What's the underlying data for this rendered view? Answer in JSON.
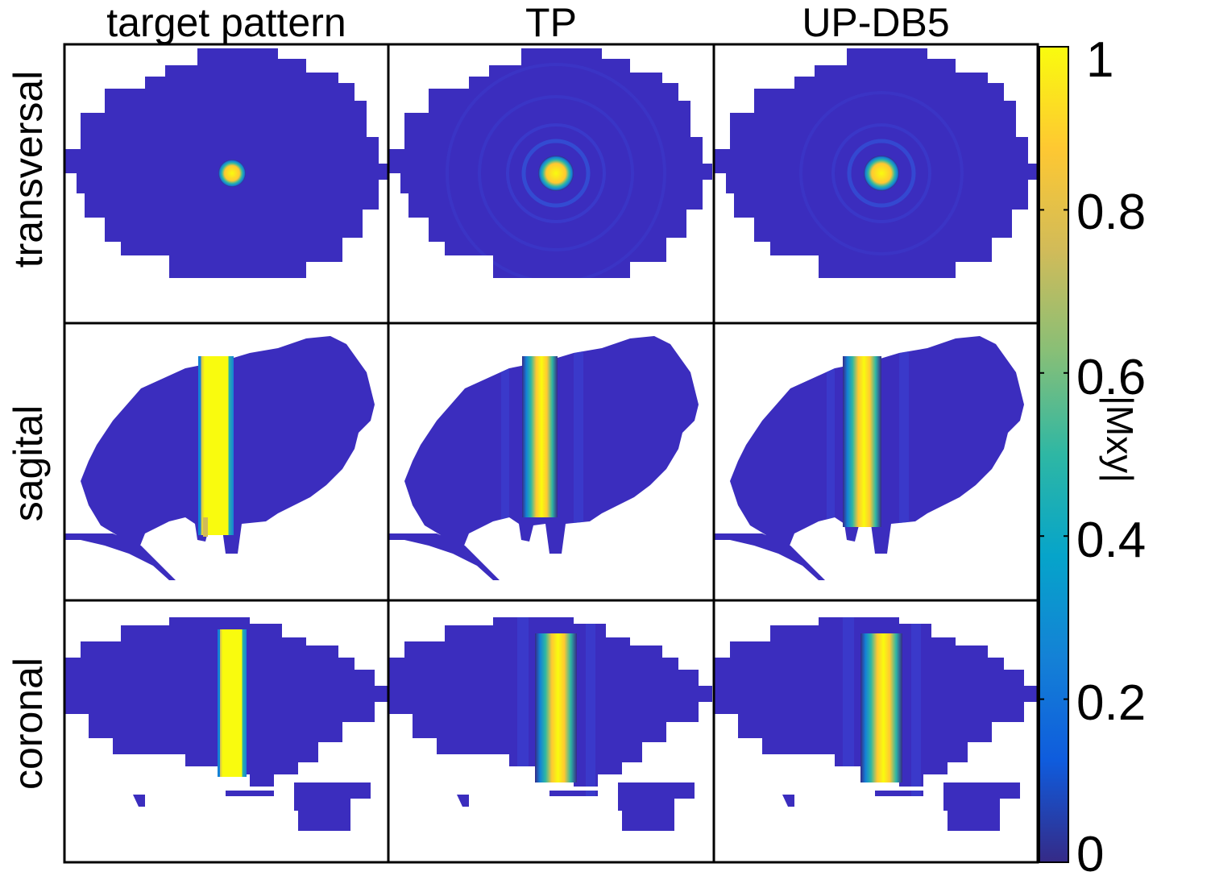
{
  "figure": {
    "column_titles": [
      "target pattern",
      "TP",
      "UP-DB5"
    ],
    "row_titles": [
      "transversal",
      "sagital",
      "coronal"
    ],
    "panels": [
      {
        "row": "transversal",
        "column": "target pattern",
        "pattern": "spot",
        "peak": 1.0,
        "ripple": 0.0
      },
      {
        "row": "transversal",
        "column": "TP",
        "pattern": "spot",
        "peak": 1.0,
        "ripple": 0.12
      },
      {
        "row": "transversal",
        "column": "UP-DB5",
        "pattern": "spot",
        "peak": 0.95,
        "ripple": 0.1
      },
      {
        "row": "sagital",
        "column": "target pattern",
        "pattern": "band",
        "peak": 1.0,
        "ripple": 0.0
      },
      {
        "row": "sagital",
        "column": "TP",
        "pattern": "band",
        "peak": 0.95,
        "ripple": 0.1
      },
      {
        "row": "sagital",
        "column": "UP-DB5",
        "pattern": "band",
        "peak": 0.93,
        "ripple": 0.1
      },
      {
        "row": "coronal",
        "column": "target pattern",
        "pattern": "band",
        "peak": 1.0,
        "ripple": 0.0
      },
      {
        "row": "coronal",
        "column": "TP",
        "pattern": "band",
        "peak": 0.95,
        "ripple": 0.1
      },
      {
        "row": "coronal",
        "column": "UP-DB5",
        "pattern": "band",
        "peak": 0.95,
        "ripple": 0.1
      }
    ]
  },
  "colorbar": {
    "label": "|Mxy|",
    "colormap": "parula",
    "range": [
      0,
      1
    ],
    "ticks": [
      {
        "value": 1,
        "label": "1"
      },
      {
        "value": 0.8,
        "label": "0.8"
      },
      {
        "value": 0.6,
        "label": "0.6"
      },
      {
        "value": 0.4,
        "label": "0.4"
      },
      {
        "value": 0.2,
        "label": "0.2"
      },
      {
        "value": 0,
        "label": "0"
      }
    ],
    "stops": [
      "#352a87",
      "#0f5cdd",
      "#1481d6",
      "#06a4ca",
      "#2eb7a4",
      "#87bf77",
      "#d1bb59",
      "#fec832",
      "#f9fb0e"
    ]
  }
}
